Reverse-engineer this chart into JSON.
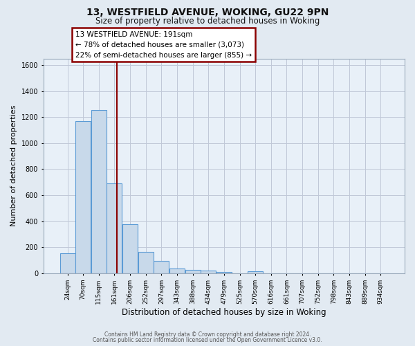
{
  "title1": "13, WESTFIELD AVENUE, WOKING, GU22 9PN",
  "title2": "Size of property relative to detached houses in Woking",
  "xlabel": "Distribution of detached houses by size in Woking",
  "ylabel": "Number of detached properties",
  "footer1": "Contains HM Land Registry data © Crown copyright and database right 2024.",
  "footer2": "Contains public sector information licensed under the Open Government Licence v3.0.",
  "bin_labels": [
    "24sqm",
    "70sqm",
    "115sqm",
    "161sqm",
    "206sqm",
    "252sqm",
    "297sqm",
    "343sqm",
    "388sqm",
    "434sqm",
    "479sqm",
    "525sqm",
    "570sqm",
    "616sqm",
    "661sqm",
    "707sqm",
    "752sqm",
    "798sqm",
    "843sqm",
    "889sqm",
    "934sqm"
  ],
  "bar_values": [
    155,
    1170,
    1255,
    690,
    375,
    165,
    93,
    38,
    25,
    20,
    10,
    0,
    15,
    0,
    0,
    0,
    0,
    0,
    0,
    0,
    0
  ],
  "bar_color": "#c8d9ea",
  "bar_edgecolor": "#5b9bd5",
  "ylim": [
    0,
    1650
  ],
  "yticks": [
    0,
    200,
    400,
    600,
    800,
    1000,
    1200,
    1400,
    1600
  ],
  "vline_color": "#8b0000",
  "annotation_line1": "13 WESTFIELD AVENUE: 191sqm",
  "annotation_line2": "← 78% of detached houses are smaller (3,073)",
  "annotation_line3": "22% of semi-detached houses are larger (855) →",
  "annotation_border_color": "#8b0000",
  "bg_color": "#e2eaf2",
  "plot_bg_color": "#e8f0f8",
  "grid_color": "#c0c8d8"
}
